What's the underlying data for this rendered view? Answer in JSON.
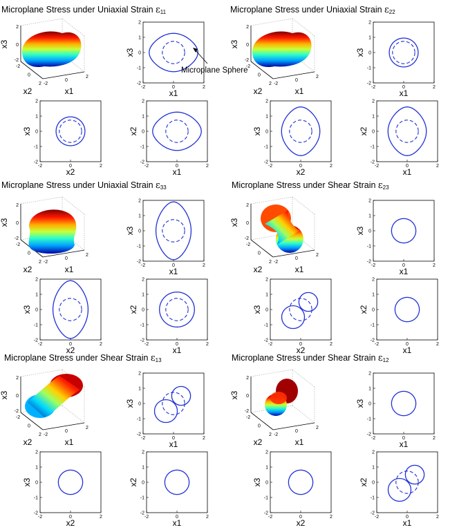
{
  "figure": {
    "colors": {
      "curve": "#1f2fd6",
      "frame": "#000000",
      "grid": "#b0b0b0"
    },
    "tick_labels_3d": [
      "-2",
      "0",
      "2"
    ],
    "annotation": "Microplane Sphere",
    "sphere_radius": 0.7
  },
  "chart_data": [
    {
      "type": "panel-group",
      "title": "Microplane Stress under Uniaxial Strain",
      "symbol": "ε",
      "subscript": "11",
      "surface": "uniaxial-11",
      "views": [
        {
          "xlabel": "x1",
          "ylabel": "x3",
          "xlim": [
            -2,
            2
          ],
          "ylim": [
            -2,
            2
          ],
          "stress_curve": {
            "shape": "peanut",
            "major_axis": "x1",
            "a": 1.6,
            "b": 1.2
          },
          "show_sphere": true
        },
        {
          "xlabel": "x2",
          "ylabel": "x3",
          "xlim": [
            -2,
            2
          ],
          "ylim": [
            -2,
            2
          ],
          "stress_curve": {
            "shape": "circle",
            "r": 0.95
          },
          "show_sphere": true
        },
        {
          "xlabel": "x1",
          "ylabel": "x2",
          "xlim": [
            -2,
            2
          ],
          "ylim": [
            -2,
            2
          ],
          "stress_curve": {
            "shape": "peanut",
            "major_axis": "x1",
            "a": 1.6,
            "b": 1.2
          },
          "show_sphere": true
        }
      ]
    },
    {
      "type": "panel-group",
      "title": "Microplane Stress under Uniaxial Strain",
      "symbol": "ε",
      "subscript": "22",
      "surface": "uniaxial-22",
      "views": [
        {
          "xlabel": "x1",
          "ylabel": "x3",
          "xlim": [
            -2,
            2
          ],
          "ylim": [
            -2,
            2
          ],
          "stress_curve": {
            "shape": "circle",
            "r": 0.95
          },
          "show_sphere": true
        },
        {
          "xlabel": "x2",
          "ylabel": "x3",
          "xlim": [
            -2,
            2
          ],
          "ylim": [
            -2,
            2
          ],
          "stress_curve": {
            "shape": "peanut",
            "major_axis": "x2",
            "a": 1.6,
            "b": 1.2
          },
          "show_sphere": true
        },
        {
          "xlabel": "x1",
          "ylabel": "x2",
          "xlim": [
            -2,
            2
          ],
          "ylim": [
            -2,
            2
          ],
          "stress_curve": {
            "shape": "peanut",
            "major_axis": "x2",
            "a": 1.6,
            "b": 1.2
          },
          "show_sphere": true
        }
      ]
    },
    {
      "type": "panel-group",
      "title": "Microplane Stress under Uniaxial Strain",
      "symbol": "ε",
      "subscript": "33",
      "surface": "uniaxial-33",
      "views": [
        {
          "xlabel": "x1",
          "ylabel": "x3",
          "xlim": [
            -2,
            2
          ],
          "ylim": [
            -2,
            2
          ],
          "stress_curve": {
            "shape": "peanut",
            "major_axis": "x3",
            "a": 1.9,
            "b": 1.1
          },
          "show_sphere": true
        },
        {
          "xlabel": "x2",
          "ylabel": "x3",
          "xlim": [
            -2,
            2
          ],
          "ylim": [
            -2,
            2
          ],
          "stress_curve": {
            "shape": "peanut",
            "major_axis": "x3",
            "a": 1.9,
            "b": 1.1
          },
          "show_sphere": true
        },
        {
          "xlabel": "x1",
          "ylabel": "x2",
          "xlim": [
            -2,
            2
          ],
          "ylim": [
            -2,
            2
          ],
          "stress_curve": {
            "shape": "circle",
            "r": 1.15
          },
          "show_sphere": true
        }
      ]
    },
    {
      "type": "panel-group",
      "title": "Microplane Stress under Shear Strain",
      "symbol": "ε",
      "subscript": "23",
      "surface": "shear-23",
      "views": [
        {
          "xlabel": "x1",
          "ylabel": "x3",
          "xlim": [
            -2,
            2
          ],
          "ylim": [
            -2,
            2
          ],
          "stress_curve": {
            "shape": "circle",
            "r": 0.8
          },
          "show_sphere": false
        },
        {
          "xlabel": "x2",
          "ylabel": "x3",
          "xlim": [
            -2,
            2
          ],
          "ylim": [
            -2,
            2
          ],
          "stress_curve": {
            "shape": "two-lobes",
            "lobe_centers": [
              [
                -0.5,
                -0.5
              ],
              [
                0.5,
                0.5
              ]
            ],
            "lobe_radii": [
              0.75,
              0.62
            ]
          },
          "show_sphere": true
        },
        {
          "xlabel": "x1",
          "ylabel": "x2",
          "xlim": [
            -2,
            2
          ],
          "ylim": [
            -2,
            2
          ],
          "stress_curve": {
            "shape": "circle",
            "r": 0.8
          },
          "show_sphere": false
        }
      ]
    },
    {
      "type": "panel-group",
      "title": "Microplane Stress under Shear Strain",
      "symbol": "ε",
      "subscript": "13",
      "surface": "shear-13",
      "views": [
        {
          "xlabel": "x1",
          "ylabel": "x3",
          "xlim": [
            -2,
            2
          ],
          "ylim": [
            -2,
            2
          ],
          "stress_curve": {
            "shape": "two-lobes",
            "lobe_centers": [
              [
                -0.5,
                -0.5
              ],
              [
                0.5,
                0.5
              ]
            ],
            "lobe_radii": [
              0.75,
              0.62
            ]
          },
          "show_sphere": true
        },
        {
          "xlabel": "x2",
          "ylabel": "x3",
          "xlim": [
            -2,
            2
          ],
          "ylim": [
            -2,
            2
          ],
          "stress_curve": {
            "shape": "circle",
            "r": 0.8
          },
          "show_sphere": false
        },
        {
          "xlabel": "x1",
          "ylabel": "x2",
          "xlim": [
            -2,
            2
          ],
          "ylim": [
            -2,
            2
          ],
          "stress_curve": {
            "shape": "circle",
            "r": 0.8
          },
          "show_sphere": false
        }
      ]
    },
    {
      "type": "panel-group",
      "title": "Microplane Stress under Shear Strain",
      "symbol": "ε",
      "subscript": "12",
      "surface": "shear-12",
      "views": [
        {
          "xlabel": "x1",
          "ylabel": "x3",
          "xlim": [
            -2,
            2
          ],
          "ylim": [
            -2,
            2
          ],
          "stress_curve": {
            "shape": "circle",
            "r": 0.8
          },
          "show_sphere": false
        },
        {
          "xlabel": "x2",
          "ylabel": "x3",
          "xlim": [
            -2,
            2
          ],
          "ylim": [
            -2,
            2
          ],
          "stress_curve": {
            "shape": "circle",
            "r": 0.8
          },
          "show_sphere": false
        },
        {
          "xlabel": "x1",
          "ylabel": "x2",
          "xlim": [
            -2,
            2
          ],
          "ylim": [
            -2,
            2
          ],
          "stress_curve": {
            "shape": "two-lobes",
            "lobe_centers": [
              [
                -0.5,
                -0.5
              ],
              [
                0.5,
                0.5
              ]
            ],
            "lobe_radii": [
              0.75,
              0.62
            ]
          },
          "show_sphere": true
        }
      ]
    }
  ]
}
